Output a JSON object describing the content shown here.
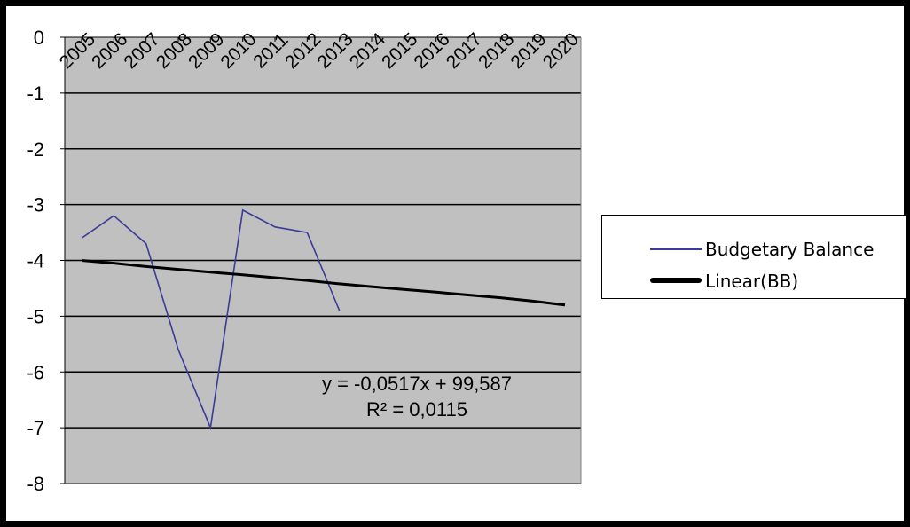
{
  "chart_data": {
    "type": "line",
    "title": "",
    "xlabel": "",
    "ylabel": "",
    "categories": [
      "2005",
      "2006",
      "2007",
      "2008",
      "2009",
      "2010",
      "2011",
      "2012",
      "2013",
      "2014",
      "2015",
      "2016",
      "2017",
      "2018",
      "2019",
      "2020"
    ],
    "ylim": [
      -8,
      0
    ],
    "yticks": [
      0,
      -1,
      -2,
      -3,
      -4,
      -5,
      -6,
      -7,
      -8
    ],
    "grid": true,
    "legend_placement": "right",
    "plot_background": "#c0c0c0",
    "series": [
      {
        "name": "Budgetary Balance",
        "color": "#3b3b98",
        "values": [
          -3.6,
          -3.2,
          -3.7,
          -5.6,
          -7.0,
          -3.1,
          -3.4,
          -3.5,
          -4.9,
          null,
          null,
          null,
          null,
          null,
          null,
          null
        ]
      },
      {
        "name": "Linear(BB)",
        "color": "#000000",
        "trendline": true,
        "values": [
          -4.0,
          -4.05,
          -4.11,
          -4.16,
          -4.21,
          -4.26,
          -4.31,
          -4.36,
          -4.42,
          -4.47,
          -4.52,
          -4.57,
          -4.62,
          -4.67,
          -4.73,
          -4.8
        ]
      }
    ],
    "annotations": [
      "y = -0,0517x + 99,587",
      "R² = 0,0115"
    ]
  }
}
